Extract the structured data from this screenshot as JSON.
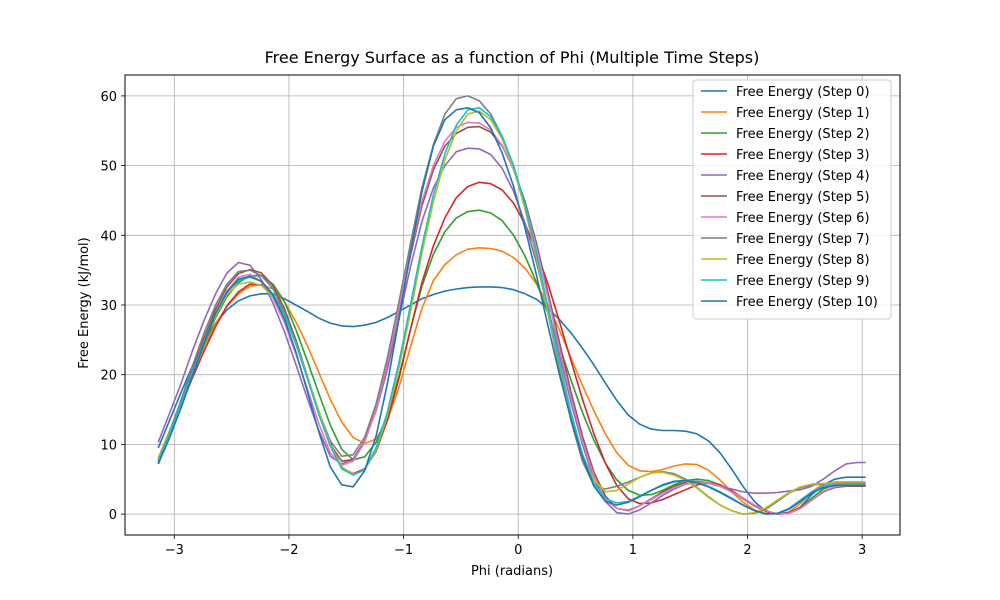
{
  "chart_data": {
    "type": "line",
    "title": "Free Energy Surface as a function of Phi (Multiple Time Steps)",
    "xlabel": "Phi (radians)",
    "ylabel": "Free Energy (kJ/mol)",
    "xlim": [
      -3.43,
      3.33
    ],
    "ylim": [
      -3,
      63
    ],
    "xticks": [
      -3,
      -2,
      -1,
      0,
      1,
      2,
      3
    ],
    "yticks": [
      0,
      10,
      20,
      30,
      40,
      50,
      60
    ],
    "grid": true,
    "legend_position": "top-right",
    "x": [
      -3.14,
      -3.04,
      -2.94,
      -2.84,
      -2.74,
      -2.64,
      -2.54,
      -2.44,
      -2.34,
      -2.24,
      -2.14,
      -2.04,
      -1.94,
      -1.84,
      -1.74,
      -1.64,
      -1.54,
      -1.44,
      -1.34,
      -1.24,
      -1.14,
      -1.04,
      -0.94,
      -0.84,
      -0.74,
      -0.64,
      -0.54,
      -0.44,
      -0.34,
      -0.24,
      -0.14,
      -0.04,
      0.06,
      0.16,
      0.26,
      0.36,
      0.46,
      0.56,
      0.66,
      0.76,
      0.86,
      0.96,
      1.06,
      1.16,
      1.26,
      1.36,
      1.46,
      1.56,
      1.66,
      1.76,
      1.86,
      1.96,
      2.06,
      2.16,
      2.26,
      2.36,
      2.46,
      2.56,
      2.66,
      2.76,
      2.86,
      2.96,
      3.03
    ],
    "series": [
      {
        "name": "Free Energy (Step 0)",
        "color": "#1f77b4",
        "values": [
          9.5,
          13.5,
          17.5,
          21.3,
          24.6,
          27.4,
          29.3,
          30.6,
          31.3,
          31.6,
          31.6,
          30.9,
          30.0,
          29.1,
          28.1,
          27.4,
          27.0,
          26.9,
          27.1,
          27.5,
          28.2,
          29.1,
          30.0,
          30.9,
          31.5,
          32.0,
          32.3,
          32.5,
          32.6,
          32.6,
          32.5,
          32.2,
          31.6,
          30.8,
          29.5,
          27.9,
          26.0,
          23.8,
          21.4,
          18.8,
          16.3,
          14.2,
          12.9,
          12.2,
          12.0,
          12.0,
          11.9,
          11.5,
          10.5,
          8.8,
          6.5,
          4.0,
          1.8,
          0.4,
          0.0,
          0.1,
          1.0,
          2.8,
          4.2,
          5.0,
          5.3,
          5.3,
          5.3
        ]
      },
      {
        "name": "Free Energy (Step 1)",
        "color": "#ff7f0e",
        "values": [
          8.0,
          12.0,
          16.2,
          20.3,
          24.0,
          27.3,
          29.8,
          31.6,
          32.7,
          32.9,
          32.3,
          30.5,
          27.6,
          24.2,
          20.3,
          16.5,
          13.2,
          11.0,
          10.1,
          10.8,
          13.5,
          18.2,
          24.0,
          29.5,
          33.5,
          35.8,
          37.2,
          38.0,
          38.2,
          38.1,
          37.7,
          36.8,
          35.3,
          33.0,
          30.0,
          26.4,
          22.4,
          18.5,
          14.8,
          11.5,
          8.8,
          7.0,
          6.2,
          6.1,
          6.4,
          6.9,
          7.2,
          7.1,
          6.3,
          4.9,
          3.2,
          1.7,
          0.6,
          0.1,
          0.0,
          0.3,
          1.5,
          3.2,
          4.3,
          4.6,
          4.6,
          4.6,
          4.6
        ]
      },
      {
        "name": "Free Energy (Step 2)",
        "color": "#2ca02c",
        "values": [
          7.5,
          11.5,
          15.8,
          20.2,
          24.4,
          28.2,
          31.2,
          33.2,
          34.2,
          34.2,
          33.0,
          30.5,
          26.5,
          22.0,
          17.3,
          12.8,
          9.3,
          7.8,
          8.2,
          10.3,
          14.2,
          19.8,
          26.5,
          32.7,
          37.3,
          40.5,
          42.5,
          43.4,
          43.6,
          43.2,
          42.1,
          40.0,
          37.0,
          33.2,
          28.8,
          24.0,
          19.2,
          14.6,
          10.6,
          7.3,
          4.9,
          3.4,
          2.7,
          2.8,
          3.4,
          4.2,
          4.8,
          5.0,
          4.8,
          4.2,
          3.3,
          2.2,
          1.2,
          0.4,
          0.0,
          0.2,
          1.0,
          2.3,
          3.6,
          4.2,
          4.3,
          4.3,
          4.3
        ]
      },
      {
        "name": "Free Energy (Step 3)",
        "color": "#d62728",
        "values": [
          7.8,
          11.6,
          15.6,
          19.6,
          23.4,
          26.9,
          29.9,
          31.9,
          33.0,
          32.9,
          31.6,
          28.8,
          24.5,
          19.6,
          14.7,
          10.2,
          6.7,
          5.8,
          6.5,
          9.0,
          13.5,
          19.5,
          26.5,
          33.2,
          38.5,
          42.5,
          45.4,
          47.0,
          47.6,
          47.4,
          46.5,
          44.6,
          41.6,
          37.7,
          33.0,
          27.6,
          22.0,
          16.5,
          11.5,
          7.3,
          4.1,
          2.2,
          1.5,
          1.6,
          2.1,
          2.8,
          3.5,
          4.2,
          4.5,
          4.2,
          3.4,
          2.3,
          1.2,
          0.4,
          0.0,
          0.2,
          0.9,
          2.0,
          3.2,
          3.9,
          4.1,
          4.1,
          4.1
        ]
      },
      {
        "name": "Free Energy (Step 4)",
        "color": "#9467bd",
        "values": [
          10.3,
          14.5,
          18.8,
          23.5,
          27.8,
          31.6,
          34.6,
          36.1,
          35.7,
          33.6,
          30.3,
          26.2,
          21.5,
          16.6,
          12.0,
          8.3,
          7.2,
          7.9,
          10.5,
          14.8,
          20.8,
          28.0,
          35.5,
          42.0,
          46.8,
          50.0,
          52.0,
          52.5,
          52.4,
          51.6,
          49.6,
          46.3,
          41.7,
          36.0,
          29.6,
          22.8,
          16.0,
          10.0,
          5.0,
          1.8,
          0.2,
          0.0,
          0.6,
          1.6,
          2.7,
          3.6,
          4.3,
          4.5,
          4.4,
          4.0,
          3.6,
          3.2,
          3.0,
          3.0,
          3.1,
          3.3,
          3.5,
          4.0,
          5.0,
          6.2,
          7.2,
          7.4,
          7.4
        ]
      },
      {
        "name": "Free Energy (Step 5)",
        "color": "#8c564b",
        "values": [
          7.2,
          11.3,
          15.8,
          20.7,
          25.3,
          29.4,
          32.6,
          34.5,
          35.1,
          34.6,
          32.8,
          29.5,
          25.0,
          19.8,
          14.5,
          10.0,
          7.6,
          7.8,
          10.4,
          15.1,
          21.6,
          29.2,
          37.1,
          44.2,
          49.4,
          52.8,
          54.6,
          55.5,
          55.6,
          54.8,
          52.8,
          49.5,
          44.8,
          38.8,
          31.8,
          24.6,
          17.5,
          11.2,
          6.0,
          2.6,
          0.8,
          0.5,
          1.2,
          2.2,
          3.2,
          4.0,
          4.5,
          4.7,
          4.5,
          4.0,
          3.2,
          2.3,
          1.3,
          0.5,
          0.0,
          0.1,
          0.8,
          2.0,
          3.2,
          3.8,
          4.0,
          4.0,
          4.0
        ]
      },
      {
        "name": "Free Energy (Step 6)",
        "color": "#e377c2",
        "values": [
          7.2,
          11.1,
          15.4,
          20.0,
          24.6,
          28.8,
          32.0,
          34.0,
          34.4,
          33.3,
          31.0,
          27.5,
          23.0,
          18.0,
          13.0,
          8.8,
          7.0,
          7.6,
          10.3,
          15.0,
          21.7,
          29.5,
          37.6,
          44.8,
          50.0,
          53.5,
          55.5,
          56.2,
          56.1,
          55.1,
          52.9,
          49.4,
          44.4,
          38.2,
          31.1,
          23.7,
          16.7,
          10.5,
          5.5,
          2.1,
          0.8,
          0.6,
          1.2,
          2.1,
          3.0,
          3.8,
          4.3,
          4.6,
          4.5,
          4.0,
          3.2,
          2.3,
          1.3,
          0.5,
          0.0,
          0.1,
          0.8,
          2.0,
          3.3,
          3.9,
          4.1,
          4.1,
          4.1
        ]
      },
      {
        "name": "Free Energy (Step 7)",
        "color": "#7f7f7f",
        "values": [
          7.5,
          11.8,
          16.4,
          21.3,
          26.0,
          30.0,
          33.0,
          34.8,
          35.0,
          34.2,
          32.4,
          29.0,
          24.6,
          19.6,
          14.7,
          10.5,
          8.3,
          8.5,
          11.0,
          15.8,
          22.5,
          30.5,
          38.8,
          46.8,
          53.0,
          57.4,
          59.6,
          60.0,
          59.3,
          57.4,
          54.2,
          49.8,
          43.8,
          36.6,
          28.8,
          20.8,
          13.4,
          7.6,
          4.1,
          3.6,
          4.0,
          4.6,
          5.3,
          5.9,
          6.1,
          5.8,
          5.0,
          3.8,
          2.5,
          1.3,
          0.5,
          0.0,
          0.1,
          0.7,
          1.8,
          3.0,
          3.8,
          4.2,
          4.3,
          4.3,
          4.3,
          4.3,
          4.3
        ]
      },
      {
        "name": "Free Energy (Step 8)",
        "color": "#bcbd22",
        "values": [
          7.8,
          11.7,
          15.8,
          20.3,
          24.5,
          28.5,
          31.5,
          33.0,
          33.3,
          32.8,
          31.2,
          28.4,
          24.5,
          19.8,
          14.8,
          10.0,
          6.8,
          5.7,
          6.3,
          9.2,
          14.2,
          21.0,
          29.0,
          37.4,
          44.8,
          50.8,
          55.0,
          57.4,
          57.8,
          56.6,
          53.8,
          49.6,
          43.8,
          36.7,
          29.0,
          21.4,
          14.4,
          8.6,
          4.9,
          3.2,
          3.4,
          4.3,
          5.3,
          5.9,
          6.0,
          5.6,
          4.8,
          3.7,
          2.4,
          1.3,
          0.5,
          0.0,
          0.2,
          0.9,
          2.0,
          3.1,
          3.9,
          4.3,
          4.4,
          4.4,
          4.4,
          4.4,
          4.4
        ]
      },
      {
        "name": "Free Energy (Step 9)",
        "color": "#17becf",
        "values": [
          7.6,
          11.6,
          15.9,
          20.4,
          24.8,
          28.8,
          31.8,
          33.5,
          34.0,
          33.4,
          31.6,
          28.6,
          24.4,
          19.5,
          14.3,
          9.8,
          6.5,
          5.6,
          6.4,
          9.5,
          14.7,
          21.8,
          30.0,
          38.4,
          45.8,
          51.7,
          55.8,
          58.0,
          58.3,
          57.0,
          54.2,
          50.0,
          44.3,
          37.3,
          29.6,
          21.8,
          14.6,
          8.6,
          4.4,
          2.2,
          1.6,
          1.8,
          2.6,
          3.4,
          4.1,
          4.6,
          4.8,
          4.6,
          4.0,
          3.2,
          2.3,
          1.3,
          0.5,
          0.0,
          0.1,
          0.8,
          2.0,
          3.2,
          4.0,
          4.3,
          4.4,
          4.4,
          4.4
        ]
      },
      {
        "name": "Free Energy (Step 10)",
        "color": "#1f77b4",
        "values": [
          7.2,
          11.0,
          15.3,
          19.9,
          24.5,
          28.8,
          31.9,
          33.7,
          34.1,
          33.4,
          31.4,
          28.0,
          23.3,
          17.6,
          11.8,
          6.8,
          4.2,
          3.9,
          6.2,
          11.2,
          18.8,
          28.0,
          37.6,
          46.2,
          52.8,
          56.6,
          58.0,
          58.3,
          57.6,
          55.4,
          51.8,
          47.0,
          41.0,
          34.2,
          27.0,
          20.0,
          13.6,
          8.2,
          4.0,
          1.8,
          1.3,
          1.7,
          2.5,
          3.4,
          4.2,
          4.7,
          4.8,
          4.5,
          3.9,
          3.1,
          2.2,
          1.3,
          0.5,
          0.0,
          0.1,
          0.7,
          1.8,
          3.0,
          3.8,
          4.1,
          4.1,
          4.1,
          4.1
        ]
      }
    ]
  }
}
